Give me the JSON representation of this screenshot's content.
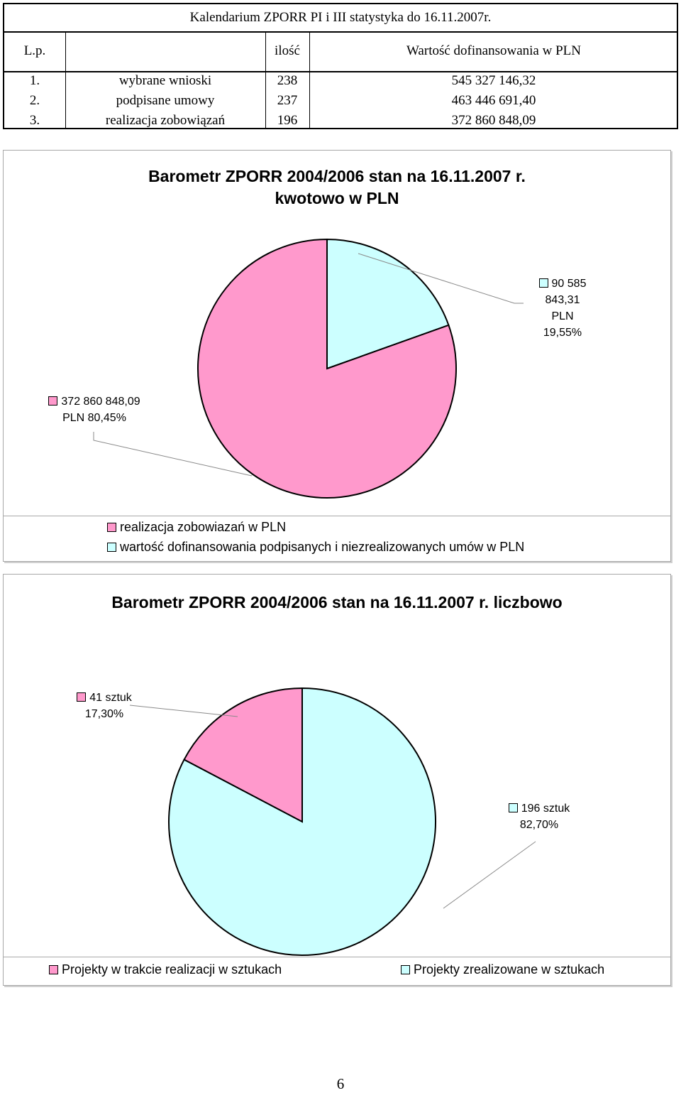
{
  "table": {
    "title": "Kalendarium ZPORR PI i III statystyka do 16.11.2007r.",
    "headers": {
      "lp": "L.p.",
      "name": "",
      "count": "ilość",
      "value": "Wartość dofinansowania w PLN"
    },
    "rows": [
      {
        "lp": "1.",
        "name": "wybrane wnioski",
        "count": "238",
        "value": "545 327 146,32"
      },
      {
        "lp": "2.",
        "name": "podpisane umowy",
        "count": "237",
        "value": "463 446 691,40"
      },
      {
        "lp": "3.",
        "name": "realizacja zobowiązań",
        "count": "196",
        "value": "372 860 848,09"
      }
    ]
  },
  "chart_data": [
    {
      "type": "pie",
      "title_line1": "Barometr ZPORR 2004/2006 stan na 16.11.2007 r.",
      "title_line2": "kwotowo w PLN",
      "slices": [
        {
          "name": "realizacja zobowiazań w PLN",
          "value": 372860848.09,
          "percent": 80.45,
          "color": "#ff99cc",
          "label_line1": "372 860 848,09",
          "label_line2": "PLN 80,45%"
        },
        {
          "name": "wartość dofinansowania podpisanych i niezrealizowanych umów w PLN",
          "value": 90585843.31,
          "percent": 19.55,
          "color": "#ccffff",
          "label_line1": "90 585 843,31",
          "label_line2": "PLN",
          "label_line3": "19,55%"
        }
      ],
      "legend": [
        "realizacja zobowiazań w PLN",
        "wartość dofinansowania podpisanych i niezrealizowanych umów w PLN"
      ]
    },
    {
      "type": "pie",
      "title": "Barometr ZPORR 2004/2006 stan na 16.11.2007 r. liczbowo",
      "slices": [
        {
          "name": "Projekty w trakcie realizacji w sztukach",
          "value": 41,
          "percent": 17.3,
          "color": "#ff99cc",
          "label_line1": "41 sztuk",
          "label_line2": "17,30%"
        },
        {
          "name": "Projekty zrealizowane w sztukach",
          "value": 196,
          "percent": 82.7,
          "color": "#ccffff",
          "label_line1": "196 sztuk",
          "label_line2": "82,70%"
        }
      ],
      "legend": [
        "Projekty w trakcie realizacji w sztukach",
        "Projekty zrealizowane w sztukach"
      ]
    }
  ],
  "page_number": "6"
}
